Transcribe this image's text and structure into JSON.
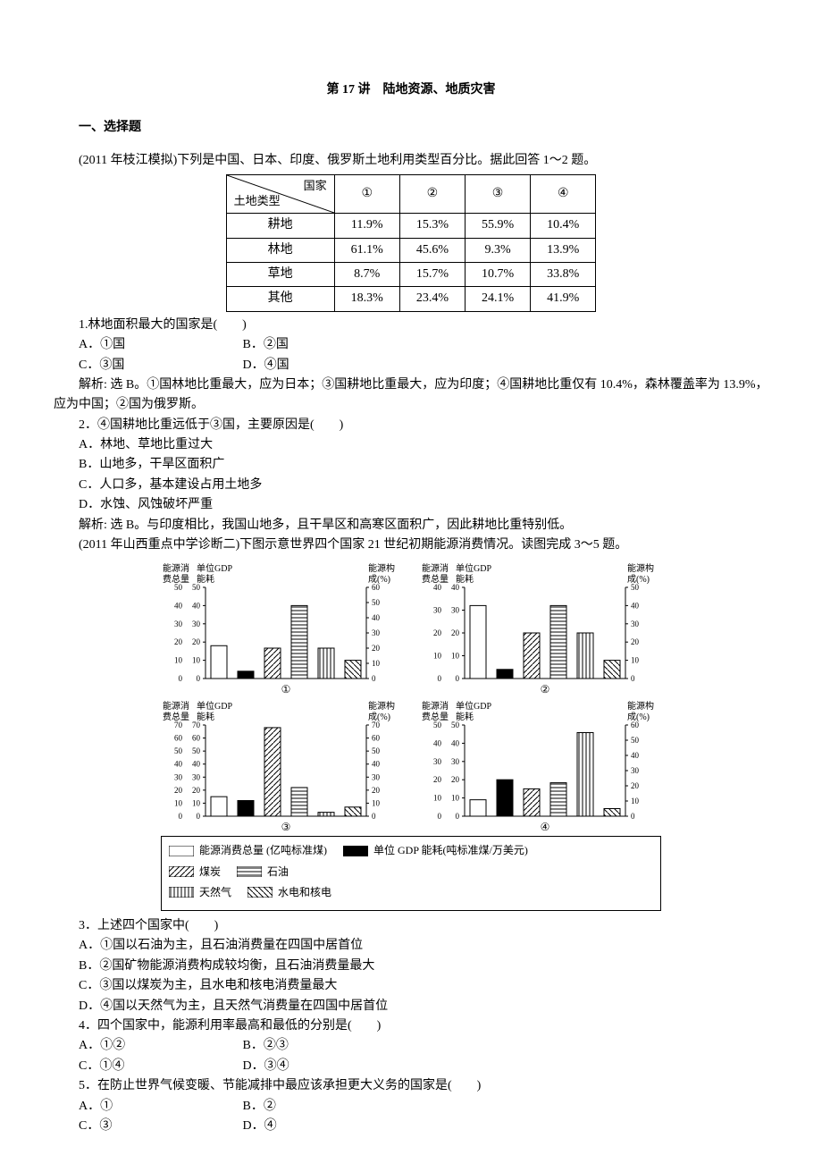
{
  "title": "第 17 讲　陆地资源、地质灾害",
  "section1": "一、选择题",
  "intro1": "(2011 年枝江模拟)下列是中国、日本、印度、俄罗斯土地利用类型百分比。据此回答 1～2 题。",
  "table1": {
    "rowHeaderTop": "国家",
    "rowHeaderBottom": "土地类型",
    "colHeaders": [
      "①",
      "②",
      "③",
      "④"
    ],
    "rows": [
      {
        "label": "耕地",
        "cells": [
          "11.9%",
          "15.3%",
          "55.9%",
          "10.4%"
        ]
      },
      {
        "label": "林地",
        "cells": [
          "61.1%",
          "45.6%",
          "9.3%",
          "13.9%"
        ]
      },
      {
        "label": "草地",
        "cells": [
          "8.7%",
          "15.7%",
          "10.7%",
          "33.8%"
        ]
      },
      {
        "label": "其他",
        "cells": [
          "18.3%",
          "23.4%",
          "24.1%",
          "41.9%"
        ]
      }
    ]
  },
  "q1": {
    "stem": "1.林地面积最大的国家是(　　)",
    "A": "A．①国",
    "B": "B．②国",
    "C": "C．③国",
    "D": "D．④国",
    "expl": "解析: 选 B。①国林地比重最大，应为日本；③国耕地比重最大，应为印度；④国耕地比重仅有 10.4%，森林覆盖率为 13.9%，应为中国；②国为俄罗斯。"
  },
  "q2": {
    "stem": "2．④国耕地比重远低于③国，主要原因是(　　)",
    "A": "A．林地、草地比重过大",
    "B": "B．山地多，干旱区面积广",
    "C": "C．人口多，基本建设占用土地多",
    "D": "D．水蚀、风蚀破坏严重",
    "expl": "解析: 选 B。与印度相比，我国山地多，且干旱区和高寒区面积广，因此耕地比重特别低。"
  },
  "intro2": "(2011 年山西重点中学诊断二)下图示意世界四个国家 21 世纪初期能源消费情况。读图完成 3～5 题。",
  "chart_common": {
    "leftAxisLabel1": "能源消",
    "leftAxisLabel2": "费总量",
    "leftAxisLabel3": "单位GDP",
    "leftAxisLabel4": "能耗",
    "rightAxisLabel1": "能源构",
    "rightAxisLabel2": "成(%)",
    "bg": "#ffffff",
    "axis_color": "#000000",
    "bar_outline": "#000000",
    "fills": {
      "total": "none",
      "gdp": "#000000",
      "coal": "diag",
      "oil": "horiz",
      "gas": "vert",
      "hydro": "back"
    }
  },
  "charts": [
    {
      "id": "①",
      "leftTicks": [
        0,
        10,
        20,
        30,
        40,
        50
      ],
      "rightTicks": [
        0,
        10,
        20,
        30,
        40,
        50,
        60
      ],
      "rightMax": 60,
      "leftMax": 50,
      "bars": [
        {
          "k": "total",
          "v": 18
        },
        {
          "k": "gdp",
          "v": 4
        },
        {
          "k": "coal",
          "v": 20
        },
        {
          "k": "oil",
          "v": 48
        },
        {
          "k": "gas",
          "v": 20
        },
        {
          "k": "hydro",
          "v": 12
        }
      ]
    },
    {
      "id": "②",
      "leftTicks": [
        0,
        10,
        20,
        30,
        40
      ],
      "rightTicks": [
        0,
        10,
        20,
        30,
        40,
        50
      ],
      "rightMax": 50,
      "leftMax": 40,
      "bars": [
        {
          "k": "total",
          "v": 32
        },
        {
          "k": "gdp",
          "v": 4
        },
        {
          "k": "coal",
          "v": 25
        },
        {
          "k": "oil",
          "v": 40
        },
        {
          "k": "gas",
          "v": 25
        },
        {
          "k": "hydro",
          "v": 10
        }
      ]
    },
    {
      "id": "③",
      "leftTicks": [
        0,
        10,
        20,
        30,
        40,
        50,
        60,
        70
      ],
      "rightTicks": [
        0,
        10,
        20,
        30,
        40,
        50,
        60,
        70
      ],
      "rightMax": 70,
      "leftMax": 70,
      "bars": [
        {
          "k": "total",
          "v": 15
        },
        {
          "k": "gdp",
          "v": 12
        },
        {
          "k": "coal",
          "v": 68
        },
        {
          "k": "oil",
          "v": 22
        },
        {
          "k": "gas",
          "v": 3
        },
        {
          "k": "hydro",
          "v": 7
        }
      ]
    },
    {
      "id": "④",
      "leftTicks": [
        0,
        10,
        20,
        30,
        40,
        50
      ],
      "rightTicks": [
        0,
        10,
        20,
        30,
        40,
        50,
        60
      ],
      "rightMax": 60,
      "leftMax": 50,
      "bars": [
        {
          "k": "total",
          "v": 9
        },
        {
          "k": "gdp",
          "v": 20
        },
        {
          "k": "coal",
          "v": 18
        },
        {
          "k": "oil",
          "v": 22
        },
        {
          "k": "gas",
          "v": 55
        },
        {
          "k": "hydro",
          "v": 5
        }
      ]
    }
  ],
  "legend": [
    {
      "k": "total",
      "label": "能源消费总量 (亿吨标准煤)"
    },
    {
      "k": "gdp",
      "label": "单位 GDP 能耗(吨标准煤/万美元)"
    },
    {
      "k": "coal",
      "label": "煤炭"
    },
    {
      "k": "oil",
      "label": "石油"
    },
    {
      "k": "gas",
      "label": "天然气"
    },
    {
      "k": "hydro",
      "label": "水电和核电"
    }
  ],
  "q3": {
    "stem": "3．上述四个国家中(　　)",
    "A": "A．①国以石油为主，且石油消费量在四国中居首位",
    "B": "B．②国矿物能源消费构成较均衡，且石油消费量最大",
    "C": "C．③国以煤炭为主，且水电和核电消费量最大",
    "D": "D．④国以天然气为主，且天然气消费量在四国中居首位"
  },
  "q4": {
    "stem": "4．四个国家中，能源利用率最高和最低的分别是(　　)",
    "A": "A．①②",
    "B": "B．②③",
    "C": "C．①④",
    "D": "D．③④"
  },
  "q5": {
    "stem": "5．在防止世界气候变暖、节能减排中最应该承担更大义务的国家是(　　)",
    "A": "A．①",
    "B": "B．②",
    "C": "C．③",
    "D": "D．④"
  }
}
